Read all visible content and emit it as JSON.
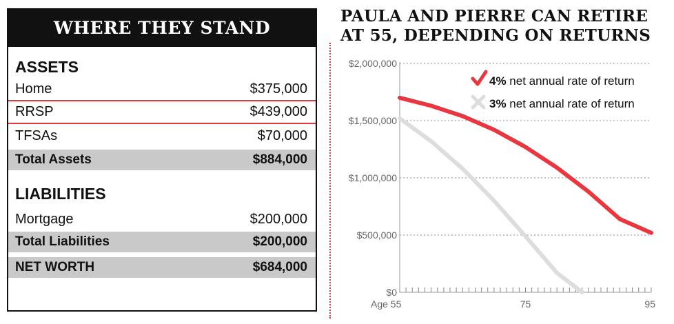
{
  "table": {
    "title": "WHERE THEY STAND",
    "assets_heading": "ASSETS",
    "assets": [
      {
        "label": "Home",
        "value": "$375,000"
      },
      {
        "label": "RRSP",
        "value": "$439,000"
      },
      {
        "label": "TFSAs",
        "value": "$70,000"
      }
    ],
    "total_assets": {
      "label": "Total Assets",
      "value": "$884,000"
    },
    "liabilities_heading": "LIABILITIES",
    "liabilities": [
      {
        "label": "Mortgage",
        "value": "$200,000"
      }
    ],
    "total_liabilities": {
      "label": "Total Liabilities",
      "value": "$200,000"
    },
    "net_worth": {
      "label": "NET WORTH",
      "value": "$684,000"
    }
  },
  "chart_data": {
    "type": "line",
    "title": "PAULA AND PIERRE CAN RETIRE AT 55, DEPENDING ON RETURNS",
    "title_lines": [
      "PAULA AND PIERRE CAN RETIRE",
      "AT 55, DEPENDING ON RETURNS"
    ],
    "xlabel": "",
    "ylabel": "",
    "xlim": [
      55,
      95
    ],
    "ylim": [
      0,
      2000000
    ],
    "x_ticks": [
      {
        "value": 55,
        "label": "Age 55"
      },
      {
        "value": 75,
        "label": "75"
      },
      {
        "value": 95,
        "label": "95"
      }
    ],
    "y_ticks": [
      {
        "value": 0,
        "label": "$0"
      },
      {
        "value": 500000,
        "label": "$500,000"
      },
      {
        "value": 1000000,
        "label": "$1,000,000"
      },
      {
        "value": 1500000,
        "label": "$1,500,000"
      },
      {
        "value": 2000000,
        "label": "$2,000,000"
      }
    ],
    "grid": "dotted-horizontal",
    "legend_position": "top-right",
    "series": [
      {
        "name": "net annual rate of return",
        "rate": "4%",
        "marker": "checkmark",
        "color": "#e8373f",
        "x": [
          55,
          60,
          65,
          70,
          75,
          80,
          85,
          90,
          95
        ],
        "y": [
          1700000,
          1630000,
          1540000,
          1420000,
          1270000,
          1090000,
          880000,
          640000,
          520000
        ]
      },
      {
        "name": "net annual rate of return",
        "rate": "3%",
        "marker": "cross",
        "color": "#dddddd",
        "x": [
          55,
          60,
          65,
          70,
          75,
          80,
          84
        ],
        "y": [
          1520000,
          1320000,
          1080000,
          800000,
          490000,
          170000,
          0
        ]
      }
    ]
  }
}
